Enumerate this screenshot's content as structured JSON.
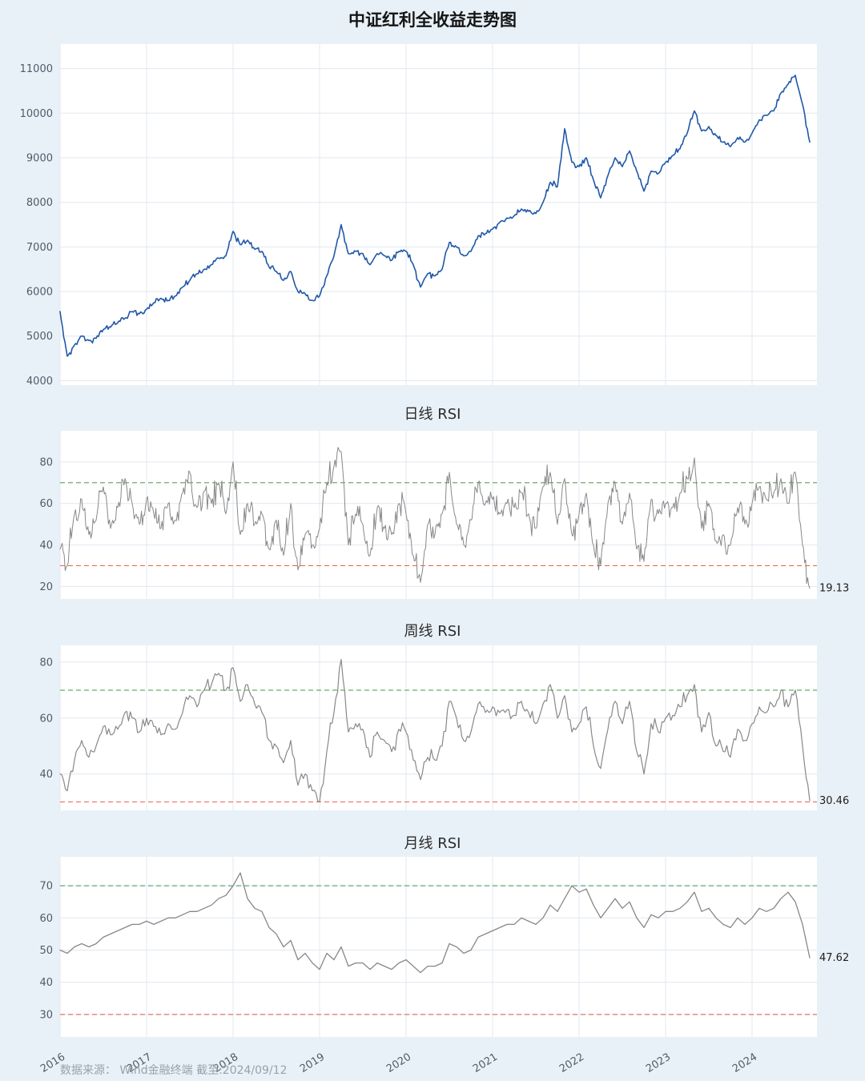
{
  "page": {
    "title": "中证红利全收益走势图",
    "footer": "数据来源： Wind金融终端 截至:2024/09/12",
    "background": "#e9f1f8",
    "plot_background": "#ffffff",
    "grid_color": "#e1e8f0"
  },
  "chart_data": [
    {
      "name": "price",
      "type": "line",
      "panel_title": "",
      "series_name": "中证红利全收益",
      "color": "#2058a8",
      "line_width": 1.6,
      "x0": 2016.0,
      "x_step_years": 0.0833333,
      "xlim": [
        2016.0,
        2024.75
      ],
      "x_tick_years": [
        2016,
        2017,
        2018,
        2019,
        2020,
        2021,
        2022,
        2023,
        2024
      ],
      "show_x_labels": false,
      "ylim": [
        3900,
        11550
      ],
      "yticks": [
        4000,
        5000,
        6000,
        7000,
        8000,
        9000,
        10000,
        11000
      ],
      "ref_lines": [],
      "end_label": null,
      "substeps": 6,
      "jitter_amp": 80,
      "clamp": [
        4400,
        11050
      ],
      "values": [
        5550,
        4550,
        4800,
        5000,
        4900,
        4950,
        5150,
        5200,
        5300,
        5400,
        5550,
        5500,
        5600,
        5750,
        5850,
        5800,
        5900,
        6100,
        6250,
        6400,
        6500,
        6600,
        6750,
        6800,
        7350,
        7050,
        7150,
        6950,
        6900,
        6550,
        6450,
        6250,
        6450,
        6000,
        5950,
        5800,
        5900,
        6350,
        6800,
        7500,
        6850,
        6900,
        6850,
        6600,
        6850,
        6800,
        6700,
        6900,
        6900,
        6600,
        6100,
        6400,
        6350,
        6500,
        7100,
        7000,
        6800,
        6900,
        7250,
        7300,
        7400,
        7550,
        7650,
        7700,
        7850,
        7800,
        7750,
        8000,
        8450,
        8350,
        9650,
        8900,
        8800,
        9000,
        8500,
        8100,
        8600,
        9000,
        8800,
        9150,
        8700,
        8250,
        8700,
        8650,
        8900,
        9050,
        9200,
        9550,
        10050,
        9600,
        9700,
        9500,
        9350,
        9250,
        9450,
        9350,
        9550,
        9850,
        9950,
        10050,
        10450,
        10650,
        10850,
        10200,
        9350
      ]
    },
    {
      "name": "daily_rsi",
      "type": "line",
      "panel_title": "日线 RSI",
      "series_name": "日线 RSI",
      "color": "#888888",
      "line_width": 1.0,
      "x0": 2016.0,
      "x_step_years": 0.0833333,
      "xlim": [
        2016.0,
        2024.75
      ],
      "x_tick_years": [
        2016,
        2017,
        2018,
        2019,
        2020,
        2021,
        2022,
        2023,
        2024
      ],
      "show_x_labels": false,
      "ylim": [
        14,
        95
      ],
      "yticks": [
        20,
        40,
        60,
        80
      ],
      "ref_lines": [
        {
          "y": 70,
          "color": "#5aa05a"
        },
        {
          "y": 30,
          "color": "#e8604f"
        }
      ],
      "end_label": "19.13",
      "substeps": 7,
      "jitter_amp": 9,
      "clamp": [
        17,
        87
      ],
      "values": [
        38,
        30,
        55,
        62,
        45,
        52,
        68,
        48,
        58,
        72,
        60,
        50,
        62,
        55,
        48,
        60,
        52,
        65,
        75,
        58,
        66,
        60,
        70,
        55,
        80,
        45,
        60,
        50,
        55,
        38,
        52,
        35,
        60,
        28,
        45,
        40,
        48,
        70,
        78,
        85,
        40,
        55,
        50,
        35,
        58,
        48,
        45,
        60,
        55,
        35,
        22,
        50,
        45,
        55,
        75,
        50,
        40,
        52,
        70,
        60,
        62,
        55,
        60,
        58,
        65,
        55,
        48,
        68,
        75,
        50,
        72,
        45,
        55,
        65,
        40,
        30,
        60,
        70,
        50,
        65,
        38,
        32,
        62,
        55,
        60,
        58,
        65,
        72,
        82,
        48,
        60,
        42,
        45,
        40,
        58,
        50,
        60,
        68,
        62,
        65,
        72,
        60,
        75,
        40,
        19.13
      ]
    },
    {
      "name": "weekly_rsi",
      "type": "line",
      "panel_title": "周线 RSI",
      "series_name": "周线 RSI",
      "color": "#888888",
      "line_width": 1.2,
      "x0": 2016.0,
      "x_step_years": 0.0833333,
      "xlim": [
        2016.0,
        2024.75
      ],
      "x_tick_years": [
        2016,
        2017,
        2018,
        2019,
        2020,
        2021,
        2022,
        2023,
        2024
      ],
      "show_x_labels": false,
      "ylim": [
        27,
        86
      ],
      "yticks": [
        40,
        60,
        80
      ],
      "ref_lines": [
        {
          "y": 70,
          "color": "#5aa05a"
        },
        {
          "y": 30,
          "color": "#e8604f"
        }
      ],
      "end_label": "30.46",
      "substeps": 4,
      "jitter_amp": 3.5,
      "clamp": [
        28.5,
        83
      ],
      "values": [
        40,
        34,
        45,
        52,
        46,
        50,
        57,
        54,
        56,
        62,
        60,
        55,
        60,
        57,
        54,
        58,
        56,
        62,
        68,
        64,
        70,
        72,
        76,
        70,
        78,
        66,
        72,
        65,
        62,
        52,
        50,
        44,
        52,
        36,
        40,
        34,
        30,
        48,
        62,
        81,
        55,
        58,
        56,
        46,
        55,
        52,
        48,
        56,
        55,
        45,
        38,
        46,
        45,
        50,
        66,
        60,
        52,
        55,
        65,
        62,
        64,
        62,
        63,
        61,
        66,
        62,
        58,
        65,
        72,
        60,
        68,
        55,
        58,
        64,
        50,
        42,
        56,
        66,
        58,
        66,
        48,
        40,
        58,
        55,
        60,
        61,
        64,
        68,
        72,
        55,
        62,
        50,
        48,
        46,
        56,
        52,
        58,
        64,
        62,
        64,
        70,
        64,
        70,
        50,
        30.46
      ]
    },
    {
      "name": "monthly_rsi",
      "type": "line",
      "panel_title": "月线 RSI",
      "series_name": "月线 RSI",
      "color": "#888888",
      "line_width": 1.3,
      "x0": 2016.0,
      "x_step_years": 0.0833333,
      "xlim": [
        2016.0,
        2024.75
      ],
      "x_tick_years": [
        2016,
        2017,
        2018,
        2019,
        2020,
        2021,
        2022,
        2023,
        2024
      ],
      "show_x_labels": true,
      "ylim": [
        23,
        79
      ],
      "yticks": [
        30,
        40,
        50,
        60,
        70
      ],
      "ref_lines": [
        {
          "y": 70,
          "color": "#5aa05a"
        },
        {
          "y": 30,
          "color": "#e8604f"
        }
      ],
      "end_label": "47.62",
      "substeps": 1,
      "jitter_amp": 0,
      "clamp": null,
      "values": [
        50,
        49,
        51,
        52,
        51,
        52,
        54,
        55,
        56,
        57,
        58,
        58,
        59,
        58,
        59,
        60,
        60,
        61,
        62,
        62,
        63,
        64,
        66,
        67,
        70,
        74,
        66,
        63,
        62,
        57,
        55,
        51,
        53,
        47,
        49,
        46,
        44,
        49,
        47,
        51,
        45,
        46,
        46,
        44,
        46,
        45,
        44,
        46,
        47,
        45,
        43,
        45,
        45,
        46,
        52,
        51,
        49,
        50,
        54,
        55,
        56,
        57,
        58,
        58,
        60,
        59,
        58,
        60,
        64,
        62,
        66,
        70,
        68,
        69,
        64,
        60,
        63,
        66,
        63,
        65,
        60,
        57,
        61,
        60,
        62,
        62,
        63,
        65,
        68,
        62,
        63,
        60,
        58,
        57,
        60,
        58,
        60,
        63,
        62,
        63,
        66,
        68,
        65,
        58,
        47.62
      ]
    }
  ]
}
